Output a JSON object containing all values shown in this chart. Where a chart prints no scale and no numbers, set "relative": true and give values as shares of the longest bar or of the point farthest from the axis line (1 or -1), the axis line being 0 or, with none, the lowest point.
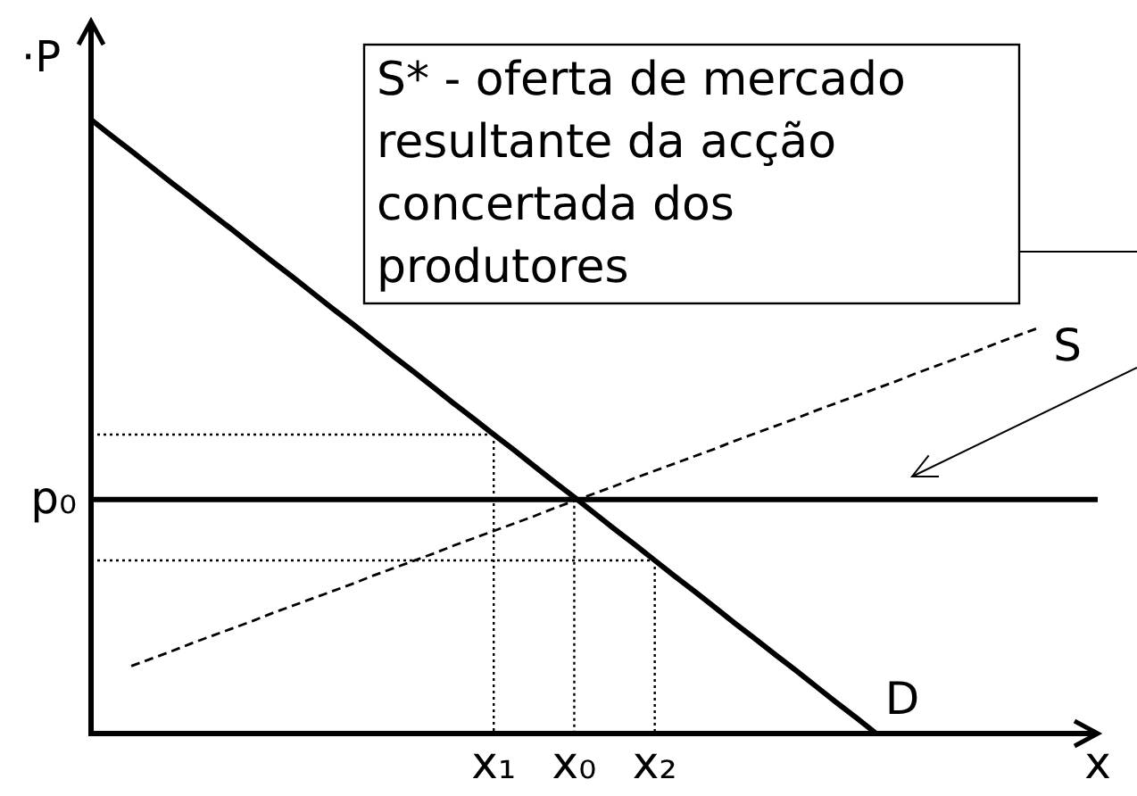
{
  "chart_data": {
    "type": "line",
    "relative": true,
    "xlabel": "x",
    "ylabel": "·P",
    "categories": [
      null,
      null,
      null,
      null,
      null,
      null,
      null,
      null,
      null,
      null,
      null,
      null,
      null,
      null,
      null,
      null,
      null,
      null,
      null,
      null,
      "x₁",
      null,
      null,
      null,
      "x₀",
      null,
      null,
      null,
      "x₂",
      null,
      null,
      null,
      null,
      null,
      null,
      null,
      null,
      null,
      null,
      null,
      null,
      null,
      null,
      null,
      null,
      null,
      null,
      null,
      null,
      null,
      null
    ],
    "annotations": [
      "S* - oferta de mercado resultante da acção concertada dos produtores"
    ],
    "series": [
      {
        "name": "D",
        "color": "#000000",
        "line_style": "solid",
        "values": [
          1,
          0.974,
          0.949,
          0.923,
          0.897,
          0.872,
          0.846,
          0.821,
          0.795,
          0.769,
          0.744,
          0.718,
          0.692,
          0.667,
          0.641,
          0.615,
          0.59,
          0.564,
          0.538,
          0.513,
          0.487,
          0.462,
          0.436,
          0.41,
          0.385,
          0.359,
          0.333,
          0.308,
          0.282,
          0.256,
          0.231,
          0.205,
          0.179,
          0.154,
          0.128,
          0.103,
          0.077,
          0.051,
          0.026,
          0,
          null,
          null,
          null,
          null,
          null,
          null,
          null,
          null,
          null,
          null,
          null
        ]
      },
      {
        "name": "S",
        "color": "#000000",
        "line_style": "dashed",
        "values": [
          null,
          null,
          0.11,
          0.122,
          0.134,
          0.147,
          0.159,
          0.171,
          0.183,
          0.196,
          0.208,
          0.22,
          0.232,
          0.244,
          0.257,
          0.269,
          0.281,
          0.293,
          0.306,
          0.318,
          0.33,
          0.342,
          0.354,
          0.367,
          0.379,
          0.391,
          0.403,
          0.416,
          0.428,
          0.44,
          0.452,
          0.464,
          0.477,
          0.489,
          0.501,
          0.513,
          0.526,
          0.538,
          0.55,
          0.562,
          0.574,
          0.587,
          0.599,
          0.611,
          0.623,
          0.636,
          0.648,
          0.66,
          null,
          null,
          null
        ]
      },
      {
        "name": "p₀",
        "color": "#000000",
        "line_style": "solid",
        "values": [
          0.381,
          0.381,
          0.381,
          0.381,
          0.381,
          0.381,
          0.381,
          0.381,
          0.381,
          0.381,
          0.381,
          0.381,
          0.381,
          0.381,
          0.381,
          0.381,
          0.381,
          0.381,
          0.381,
          0.381,
          0.381,
          0.381,
          0.381,
          0.381,
          0.381,
          0.381,
          0.381,
          0.381,
          0.381,
          0.381,
          0.381,
          0.381,
          0.381,
          0.381,
          0.381,
          0.381,
          0.381,
          0.381,
          0.381,
          0.381,
          0.381,
          0.381,
          0.381,
          0.381,
          0.381,
          0.381,
          0.381,
          0.381,
          0.381,
          0.381,
          0.381
        ]
      },
      {
        "color": "#000000",
        "line_style": "dotted",
        "values": [
          0.487,
          0.487,
          0.487,
          0.487,
          0.487,
          0.487,
          0.487,
          0.487,
          0.487,
          0.487,
          0.487,
          0.487,
          0.487,
          0.487,
          0.487,
          0.487,
          0.487,
          0.487,
          0.487,
          0.487,
          0.487,
          null,
          null,
          null,
          null,
          null,
          null,
          null,
          null,
          null,
          null,
          null,
          null,
          null,
          null,
          null,
          null,
          null,
          null,
          null,
          null,
          null,
          null,
          null,
          null,
          null,
          null,
          null,
          null,
          null,
          null
        ]
      },
      {
        "color": "#000000",
        "line_style": "dotted",
        "x": [
          "x₁",
          "x₁"
        ],
        "values": [
          0.487,
          0
        ]
      },
      {
        "color": "#000000",
        "line_style": "dotted",
        "x": [
          "x₀",
          "x₀"
        ],
        "values": [
          0.381,
          0
        ]
      },
      {
        "color": "#000000",
        "line_style": "dotted",
        "values": [
          0.282,
          0.282,
          0.282,
          0.282,
          0.282,
          0.282,
          0.282,
          0.282,
          0.282,
          0.282,
          0.282,
          0.282,
          0.282,
          0.282,
          0.282,
          0.282,
          0.282,
          0.282,
          0.282,
          0.282,
          0.282,
          0.282,
          0.282,
          0.282,
          0.282,
          0.282,
          0.282,
          0.282,
          0.282,
          null,
          null,
          null,
          null,
          null,
          null,
          null,
          null,
          null,
          null,
          null,
          null,
          null,
          null,
          null,
          null,
          null,
          null,
          null,
          null,
          null,
          null
        ]
      },
      {
        "color": "#000000",
        "line_style": "dotted",
        "x": [
          "x₂",
          "x₂"
        ],
        "values": [
          0.282,
          0
        ]
      }
    ]
  }
}
